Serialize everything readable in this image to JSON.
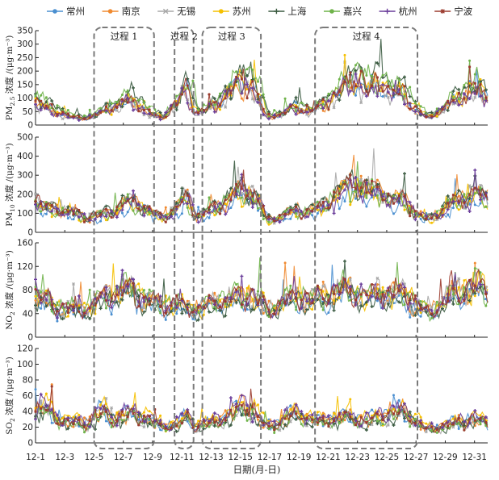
{
  "chart_data": {
    "type": "line",
    "xlabel": "日期(月-日)",
    "x_ticks": [
      "12-1",
      "12-3",
      "12-5",
      "12-7",
      "12-9",
      "12-11",
      "12-13",
      "12-15",
      "12-17",
      "12-19",
      "12-21",
      "12-23",
      "12-25",
      "12-27",
      "12-29",
      "12-31"
    ],
    "x_range": [
      1,
      31.9
    ],
    "cities": [
      {
        "name": "常州",
        "color": "#4a8fd0",
        "marker": "circle"
      },
      {
        "name": "南京",
        "color": "#f08a30",
        "marker": "circle"
      },
      {
        "name": "无锡",
        "color": "#a8a8a8",
        "marker": "cross"
      },
      {
        "name": "苏州",
        "color": "#f5c000",
        "marker": "circle"
      },
      {
        "name": "上海",
        "color": "#3a5a40",
        "marker": "plus"
      },
      {
        "name": "嘉兴",
        "color": "#6fb34a",
        "marker": "circle"
      },
      {
        "name": "杭州",
        "color": "#6a3d9a",
        "marker": "plus"
      },
      {
        "name": "宁波",
        "color": "#9b3b2e",
        "marker": "star"
      }
    ],
    "processes": [
      {
        "label": "过程 1",
        "start": 5.0,
        "end": 9.1
      },
      {
        "label": "过程 2",
        "start": 10.5,
        "end": 11.8
      },
      {
        "label": "过程 3",
        "start": 12.4,
        "end": 16.4
      },
      {
        "label": "过程 4",
        "start": 20.1,
        "end": 27.1
      }
    ],
    "panels": [
      {
        "pollutant": "PM2.5",
        "ylabel_main": "PM",
        "ylabel_sub": "2.5",
        "ylabel_rest": "浓度 /(μg·m⁻³)",
        "ylim": [
          0,
          350
        ],
        "yticks": [
          "0",
          "50",
          "100",
          "150",
          "200",
          "250",
          "300",
          "350"
        ],
        "envelope": [
          [
            1,
            150
          ],
          [
            1.5,
            110
          ],
          [
            2.5,
            80
          ],
          [
            3.5,
            45
          ],
          [
            4.5,
            40
          ],
          [
            5.5,
            70
          ],
          [
            6.5,
            110
          ],
          [
            7.5,
            150
          ],
          [
            8.2,
            120
          ],
          [
            9,
            60
          ],
          [
            9.8,
            45
          ],
          [
            10.8,
            140
          ],
          [
            11.4,
            220
          ],
          [
            12,
            70
          ],
          [
            12.8,
            90
          ],
          [
            13.8,
            150
          ],
          [
            14.8,
            240
          ],
          [
            15.6,
            260
          ],
          [
            16.3,
            170
          ],
          [
            16.8,
            50
          ],
          [
            17.8,
            60
          ],
          [
            18.8,
            110
          ],
          [
            19.8,
            80
          ],
          [
            20.5,
            110
          ],
          [
            21.5,
            170
          ],
          [
            22.3,
            230
          ],
          [
            23,
            285
          ],
          [
            23.8,
            200
          ],
          [
            24.6,
            260
          ],
          [
            25.4,
            180
          ],
          [
            26.2,
            190
          ],
          [
            27,
            90
          ],
          [
            27.8,
            45
          ],
          [
            28.6,
            80
          ],
          [
            29.4,
            130
          ],
          [
            30.2,
            170
          ],
          [
            31,
            210
          ],
          [
            31.9,
            160
          ]
        ]
      },
      {
        "pollutant": "PM10",
        "ylabel_main": "PM",
        "ylabel_sub": "10",
        "ylabel_rest": "浓度 /(μg·m⁻³)",
        "ylim": [
          0,
          500
        ],
        "yticks": [
          "0",
          "100",
          "200",
          "300",
          "400",
          "500"
        ],
        "envelope": [
          [
            1,
            240
          ],
          [
            1.5,
            170
          ],
          [
            2.5,
            170
          ],
          [
            3.5,
            140
          ],
          [
            4.5,
            110
          ],
          [
            5.5,
            120
          ],
          [
            6.5,
            160
          ],
          [
            7.5,
            220
          ],
          [
            8.2,
            200
          ],
          [
            9,
            130
          ],
          [
            9.8,
            110
          ],
          [
            10.8,
            180
          ],
          [
            11.4,
            260
          ],
          [
            12,
            120
          ],
          [
            12.8,
            140
          ],
          [
            13.8,
            210
          ],
          [
            14.8,
            280
          ],
          [
            15.6,
            300
          ],
          [
            16.3,
            220
          ],
          [
            16.8,
            90
          ],
          [
            17.8,
            110
          ],
          [
            18.8,
            160
          ],
          [
            19.8,
            150
          ],
          [
            20.5,
            170
          ],
          [
            21.5,
            260
          ],
          [
            22.3,
            320
          ],
          [
            23,
            360
          ],
          [
            23.8,
            280
          ],
          [
            24.6,
            310
          ],
          [
            25.4,
            220
          ],
          [
            26.2,
            240
          ],
          [
            27,
            140
          ],
          [
            27.8,
            90
          ],
          [
            28.6,
            140
          ],
          [
            29.4,
            200
          ],
          [
            30.2,
            240
          ],
          [
            31,
            280
          ],
          [
            31.9,
            240
          ]
        ]
      },
      {
        "pollutant": "NO2",
        "ylabel_main": "NO",
        "ylabel_sub": "2",
        "ylabel_rest": "浓度 /(μg·m⁻³)",
        "ylim": [
          0,
          160
        ],
        "yticks": [
          "0",
          "40",
          "80",
          "120",
          "160"
        ],
        "envelope": [
          [
            1,
            100
          ],
          [
            1.5,
            90
          ],
          [
            2.5,
            75
          ],
          [
            3.5,
            65
          ],
          [
            4.5,
            70
          ],
          [
            5.5,
            95
          ],
          [
            6.5,
            105
          ],
          [
            7.5,
            120
          ],
          [
            8.2,
            95
          ],
          [
            9,
            85
          ],
          [
            9.8,
            80
          ],
          [
            10.8,
            75
          ],
          [
            11.4,
            70
          ],
          [
            12,
            65
          ],
          [
            12.8,
            80
          ],
          [
            13.8,
            90
          ],
          [
            14.8,
            95
          ],
          [
            15.6,
            100
          ],
          [
            16.3,
            85
          ],
          [
            16.8,
            60
          ],
          [
            17.8,
            85
          ],
          [
            18.8,
            100
          ],
          [
            19.8,
            90
          ],
          [
            20.5,
            95
          ],
          [
            21.5,
            110
          ],
          [
            22.3,
            115
          ],
          [
            23,
            105
          ],
          [
            23.8,
            95
          ],
          [
            24.6,
            110
          ],
          [
            25.4,
            100
          ],
          [
            26.2,
            105
          ],
          [
            27,
            80
          ],
          [
            27.8,
            55
          ],
          [
            28.6,
            80
          ],
          [
            29.4,
            100
          ],
          [
            30.2,
            110
          ],
          [
            31,
            125
          ],
          [
            31.9,
            110
          ]
        ]
      },
      {
        "pollutant": "SO2",
        "ylabel_main": "SO",
        "ylabel_sub": "2",
        "ylabel_rest": "浓度 /(μg·m⁻³)",
        "ylim": [
          0,
          120
        ],
        "yticks": [
          "0",
          "20",
          "40",
          "60",
          "80",
          "100",
          "120"
        ],
        "envelope": [
          [
            1,
            60
          ],
          [
            1.5,
            70
          ],
          [
            2.5,
            45
          ],
          [
            3.5,
            40
          ],
          [
            4.5,
            35
          ],
          [
            5.5,
            60
          ],
          [
            6.5,
            45
          ],
          [
            7.5,
            55
          ],
          [
            8.2,
            50
          ],
          [
            9,
            40
          ],
          [
            9.8,
            30
          ],
          [
            10.8,
            35
          ],
          [
            11.4,
            50
          ],
          [
            12,
            30
          ],
          [
            12.8,
            35
          ],
          [
            13.8,
            45
          ],
          [
            14.8,
            60
          ],
          [
            15.6,
            70
          ],
          [
            16.3,
            45
          ],
          [
            16.8,
            30
          ],
          [
            17.8,
            40
          ],
          [
            18.8,
            55
          ],
          [
            19.8,
            45
          ],
          [
            20.5,
            40
          ],
          [
            21.5,
            45
          ],
          [
            22.3,
            50
          ],
          [
            23,
            45
          ],
          [
            23.8,
            40
          ],
          [
            24.6,
            50
          ],
          [
            25.4,
            55
          ],
          [
            26.2,
            60
          ],
          [
            27,
            40
          ],
          [
            27.8,
            25
          ],
          [
            28.6,
            30
          ],
          [
            29.4,
            35
          ],
          [
            30.2,
            40
          ],
          [
            31,
            45
          ],
          [
            31.9,
            35
          ]
        ]
      }
    ]
  }
}
